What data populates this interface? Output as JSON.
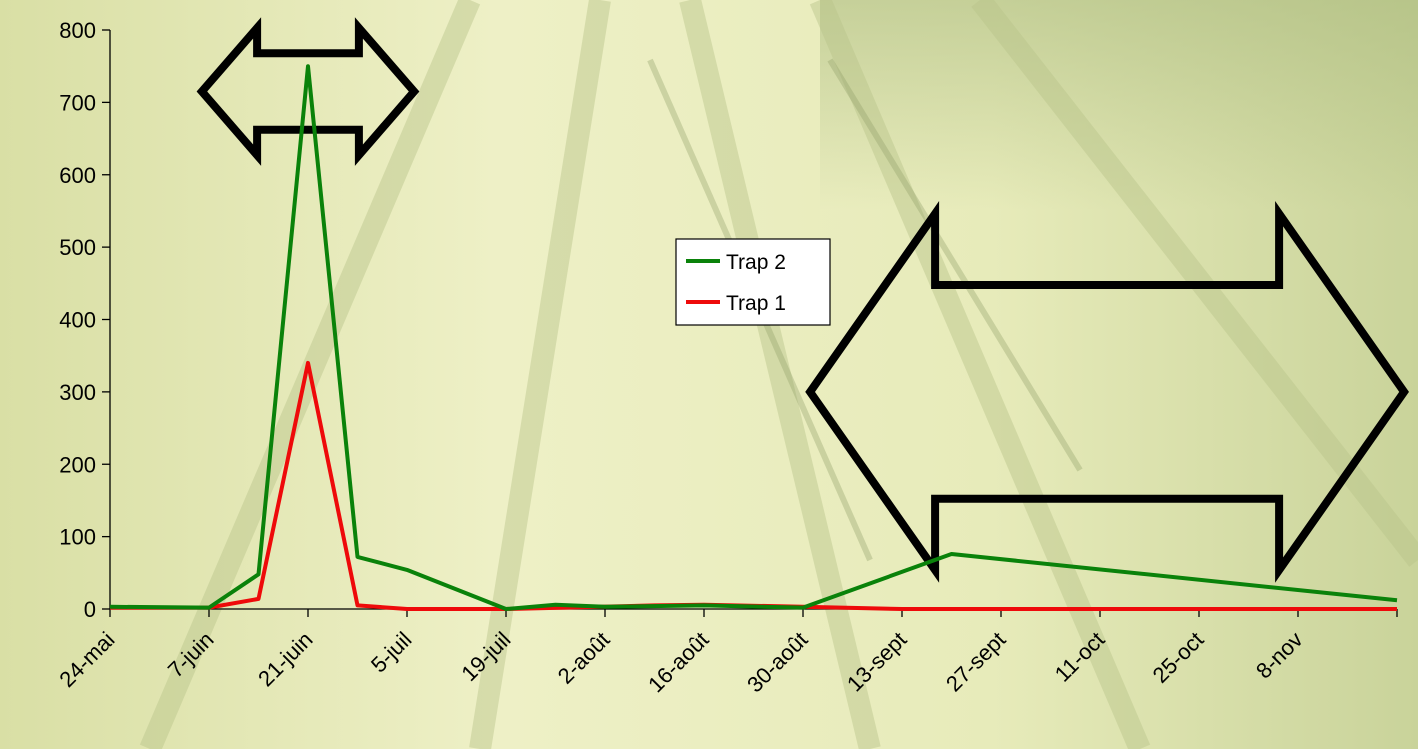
{
  "chart_data": {
    "type": "line",
    "title": "",
    "xlabel": "",
    "ylabel": "",
    "ylim": [
      0,
      800
    ],
    "yticks": [
      0,
      100,
      200,
      300,
      400,
      500,
      600,
      700,
      800
    ],
    "grid": false,
    "legend_position": "center-right",
    "categories": [
      "24-mai",
      "7-juin",
      "21-juin",
      "5-juil",
      "19-juil",
      "2-août",
      "16-août",
      "30-août",
      "13-sept",
      "27-sept",
      "11-oct",
      "25-oct",
      "8-nov"
    ],
    "series": [
      {
        "name": "Trap 2",
        "color": "#0a820a",
        "points": [
          {
            "x": "2004-05-24",
            "y": 3
          },
          {
            "x": "2004-06-07",
            "y": 2
          },
          {
            "x": "2004-06-14",
            "y": 48
          },
          {
            "x": "2004-06-21",
            "y": 750
          },
          {
            "x": "2004-06-28",
            "y": 72
          },
          {
            "x": "2004-07-05",
            "y": 54
          },
          {
            "x": "2004-07-19",
            "y": 0
          },
          {
            "x": "2004-07-26",
            "y": 6
          },
          {
            "x": "2004-08-02",
            "y": 3
          },
          {
            "x": "2004-08-16",
            "y": 5
          },
          {
            "x": "2004-08-30",
            "y": 2
          },
          {
            "x": "2004-09-20",
            "y": 76
          },
          {
            "x": "2004-11-22",
            "y": 12
          }
        ]
      },
      {
        "name": "Trap 1",
        "color": "#ee0a0a",
        "points": [
          {
            "x": "2004-05-24",
            "y": 2
          },
          {
            "x": "2004-06-07",
            "y": 2
          },
          {
            "x": "2004-06-14",
            "y": 14
          },
          {
            "x": "2004-06-21",
            "y": 340
          },
          {
            "x": "2004-06-28",
            "y": 5
          },
          {
            "x": "2004-07-05",
            "y": 0
          },
          {
            "x": "2004-07-19",
            "y": 0
          },
          {
            "x": "2004-08-09",
            "y": 5
          },
          {
            "x": "2004-08-16",
            "y": 6
          },
          {
            "x": "2004-08-30",
            "y": 3
          },
          {
            "x": "2004-09-13",
            "y": 0
          },
          {
            "x": "2004-11-22",
            "y": 0
          }
        ]
      }
    ],
    "annotations": [
      {
        "type": "double-arrow",
        "from": "2004-06-06",
        "to": "2004-07-06",
        "y": 715
      },
      {
        "type": "double-arrow",
        "from": "2004-08-31",
        "to": "2004-11-23",
        "y": 300
      }
    ]
  }
}
